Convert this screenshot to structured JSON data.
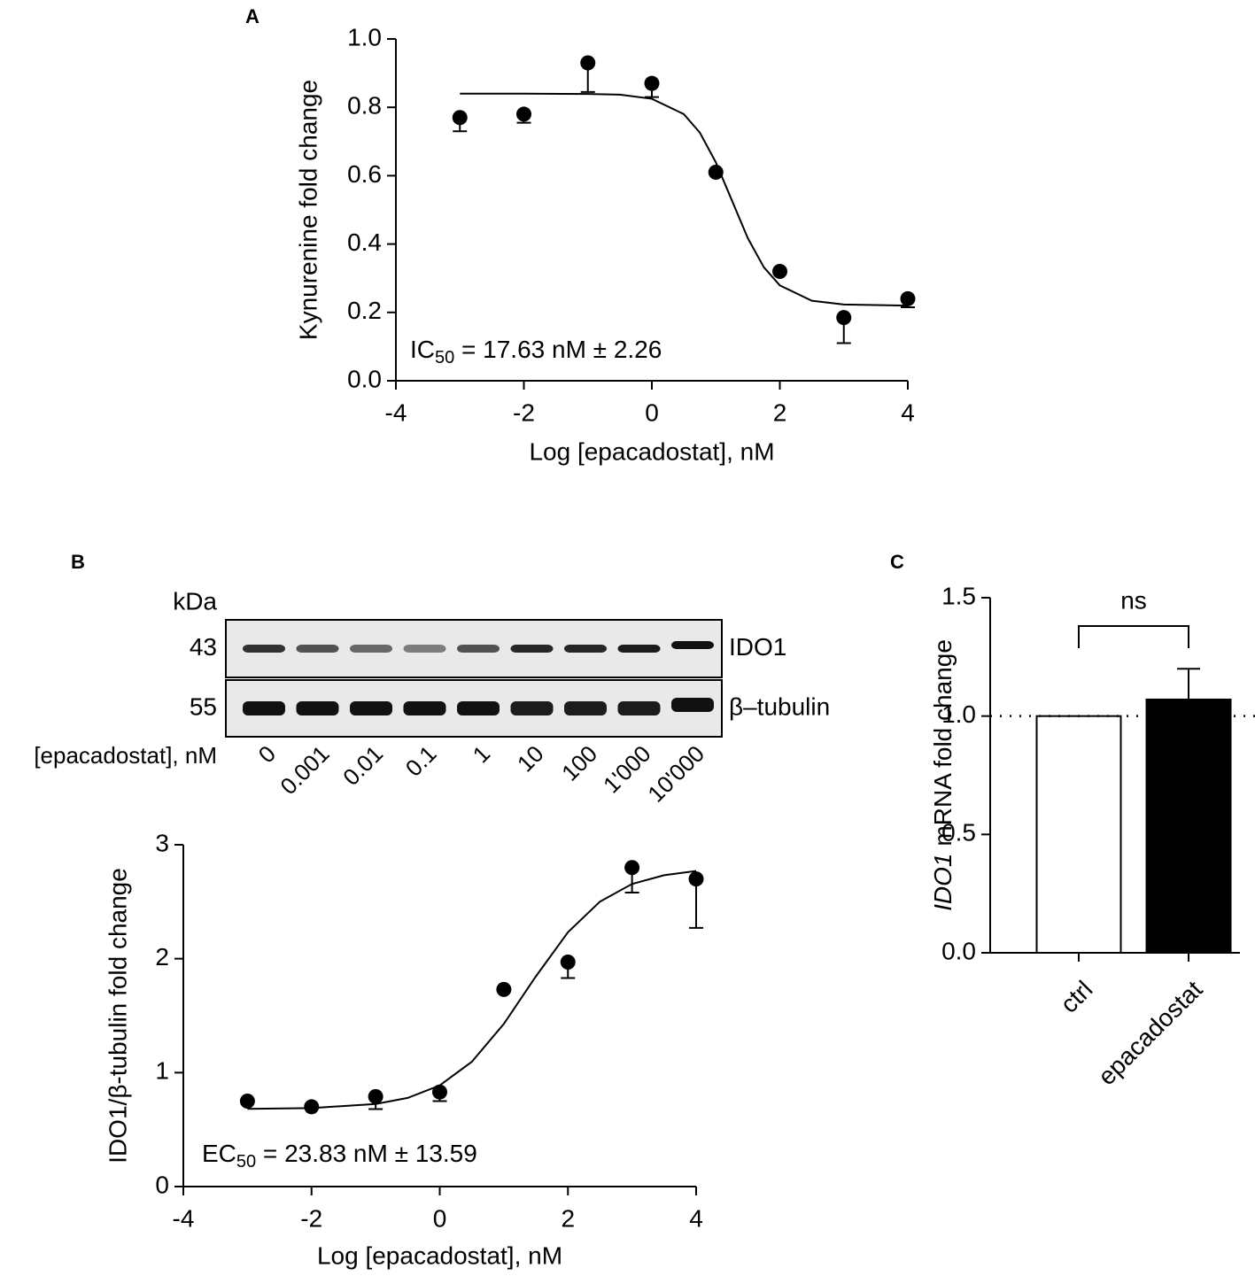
{
  "chart_data": [
    {
      "panel": "A",
      "type": "scatter",
      "color": "#000000",
      "x": [
        -3,
        -2,
        -1,
        0,
        1,
        2,
        3,
        4
      ],
      "values": [
        0.77,
        0.78,
        0.93,
        0.87,
        0.61,
        0.32,
        0.185,
        0.24
      ],
      "errors": [
        0.04,
        0.025,
        0.085,
        0.04,
        0.005,
        0.005,
        0.075,
        0.025
      ],
      "curve": {
        "x": [
          -3,
          -2,
          -1,
          -0.5,
          0,
          0.5,
          0.75,
          1,
          1.25,
          1.5,
          1.75,
          2,
          2.5,
          3,
          4
        ],
        "y": [
          0.84,
          0.84,
          0.839,
          0.837,
          0.825,
          0.78,
          0.726,
          0.639,
          0.528,
          0.417,
          0.332,
          0.279,
          0.234,
          0.223,
          0.22
        ]
      },
      "xlabel": "Log [epacadostat], nM",
      "ylabel": "Kynurenine fold change",
      "annotation": {
        "text": "IC",
        "subscript": "50",
        "rest": " = 17.63 nM ± 2.26"
      },
      "xlim": [
        -4,
        4
      ],
      "ylim": [
        0,
        1
      ],
      "xticks": [
        -4,
        -2,
        0,
        2,
        4
      ],
      "yticks": [
        {
          "value": 0,
          "label": "0.0"
        },
        0.2,
        0.4,
        0.6,
        0.8,
        {
          "value": 1,
          "label": "1.0"
        }
      ]
    },
    {
      "panel": "B",
      "type": "scatter",
      "color": "#000000",
      "x": [
        -3,
        -2,
        -1,
        0,
        1,
        2,
        3,
        4
      ],
      "values": [
        0.75,
        0.7,
        0.79,
        0.83,
        1.73,
        1.97,
        2.8,
        2.7
      ],
      "errors": [
        0.01,
        0.01,
        0.11,
        0.08,
        0.01,
        0.14,
        0.22,
        0.43
      ],
      "curve": {
        "x": [
          -3,
          -2,
          -1,
          -0.5,
          0,
          0.5,
          1,
          1.5,
          2,
          2.5,
          3,
          3.5,
          4
        ],
        "y": [
          0.682,
          0.689,
          0.725,
          0.778,
          0.888,
          1.095,
          1.428,
          1.845,
          2.232,
          2.501,
          2.656,
          2.733,
          2.77
        ]
      },
      "xlabel": "Log [epacadostat], nM",
      "ylabel": "IDO1/β-tubulin fold change",
      "annotation": {
        "text": "EC",
        "subscript": "50",
        "rest": " = 23.83 nM ± 13.59"
      },
      "xlim": [
        -4,
        4
      ],
      "ylim": [
        0,
        3
      ],
      "xticks": [
        -4,
        -2,
        0,
        2,
        4
      ],
      "yticks": [
        0,
        1,
        2,
        3
      ]
    },
    {
      "panel": "C",
      "type": "bar",
      "categories": [
        "ctrl",
        "epacadostat"
      ],
      "values": [
        1,
        1.07
      ],
      "errors": [
        null,
        0.13
      ],
      "colors": [
        "#ffffff",
        "#000000"
      ],
      "ylabel": [
        "IDO1",
        "mRNA fold change"
      ],
      "ylim": [
        0,
        1.5
      ],
      "yticks": [
        {
          "value": 0,
          "label": "0.0"
        },
        0.5,
        {
          "value": 1,
          "label": "1.0"
        },
        1.5
      ],
      "reference_line": 1,
      "significance": "ns"
    }
  ],
  "blot": {
    "unit": "kDa",
    "bands": [
      {
        "size": "43",
        "name": "IDO1"
      },
      {
        "size": "55",
        "name": "β–tubulin"
      }
    ],
    "label": "[epacadostat], nM",
    "lanes": [
      "0",
      "0.001",
      "0.01",
      "0.1",
      "1",
      "10",
      "100",
      "1'000",
      "10'000"
    ]
  }
}
